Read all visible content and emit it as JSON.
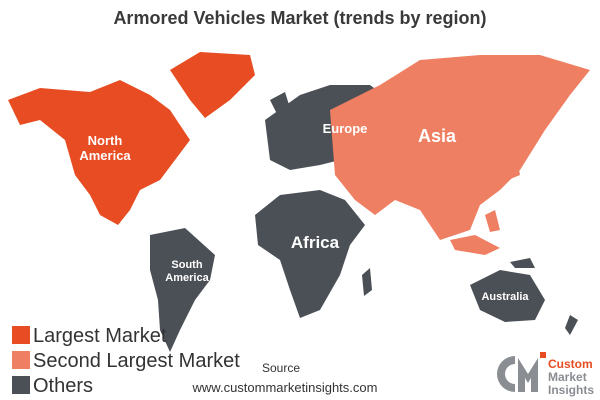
{
  "title": "Armored Vehicles Market (trends by region)",
  "regions": [
    {
      "label": [
        "North",
        "America"
      ],
      "color": "#e84c22"
    },
    {
      "label": [
        "South",
        "America"
      ],
      "color": "#4b4f56"
    },
    {
      "label": [
        "Europe"
      ],
      "color": "#4b4f56"
    },
    {
      "label": [
        "Africa"
      ],
      "color": "#4b4f56"
    },
    {
      "label": [
        "Asia"
      ],
      "color": "#ef7f62"
    },
    {
      "label": [
        "Australia"
      ],
      "color": "#4b4f56"
    }
  ],
  "legend": [
    {
      "label": "Largest Market",
      "color": "#e84c22"
    },
    {
      "label": "Second Largest Market",
      "color": "#ef7f62"
    },
    {
      "label": "Others",
      "color": "#4b4f56"
    }
  ],
  "source": {
    "label": "Source",
    "url": "www.custommarketinsights.com"
  },
  "logo": [
    "Custom",
    "Market",
    "Insights"
  ]
}
